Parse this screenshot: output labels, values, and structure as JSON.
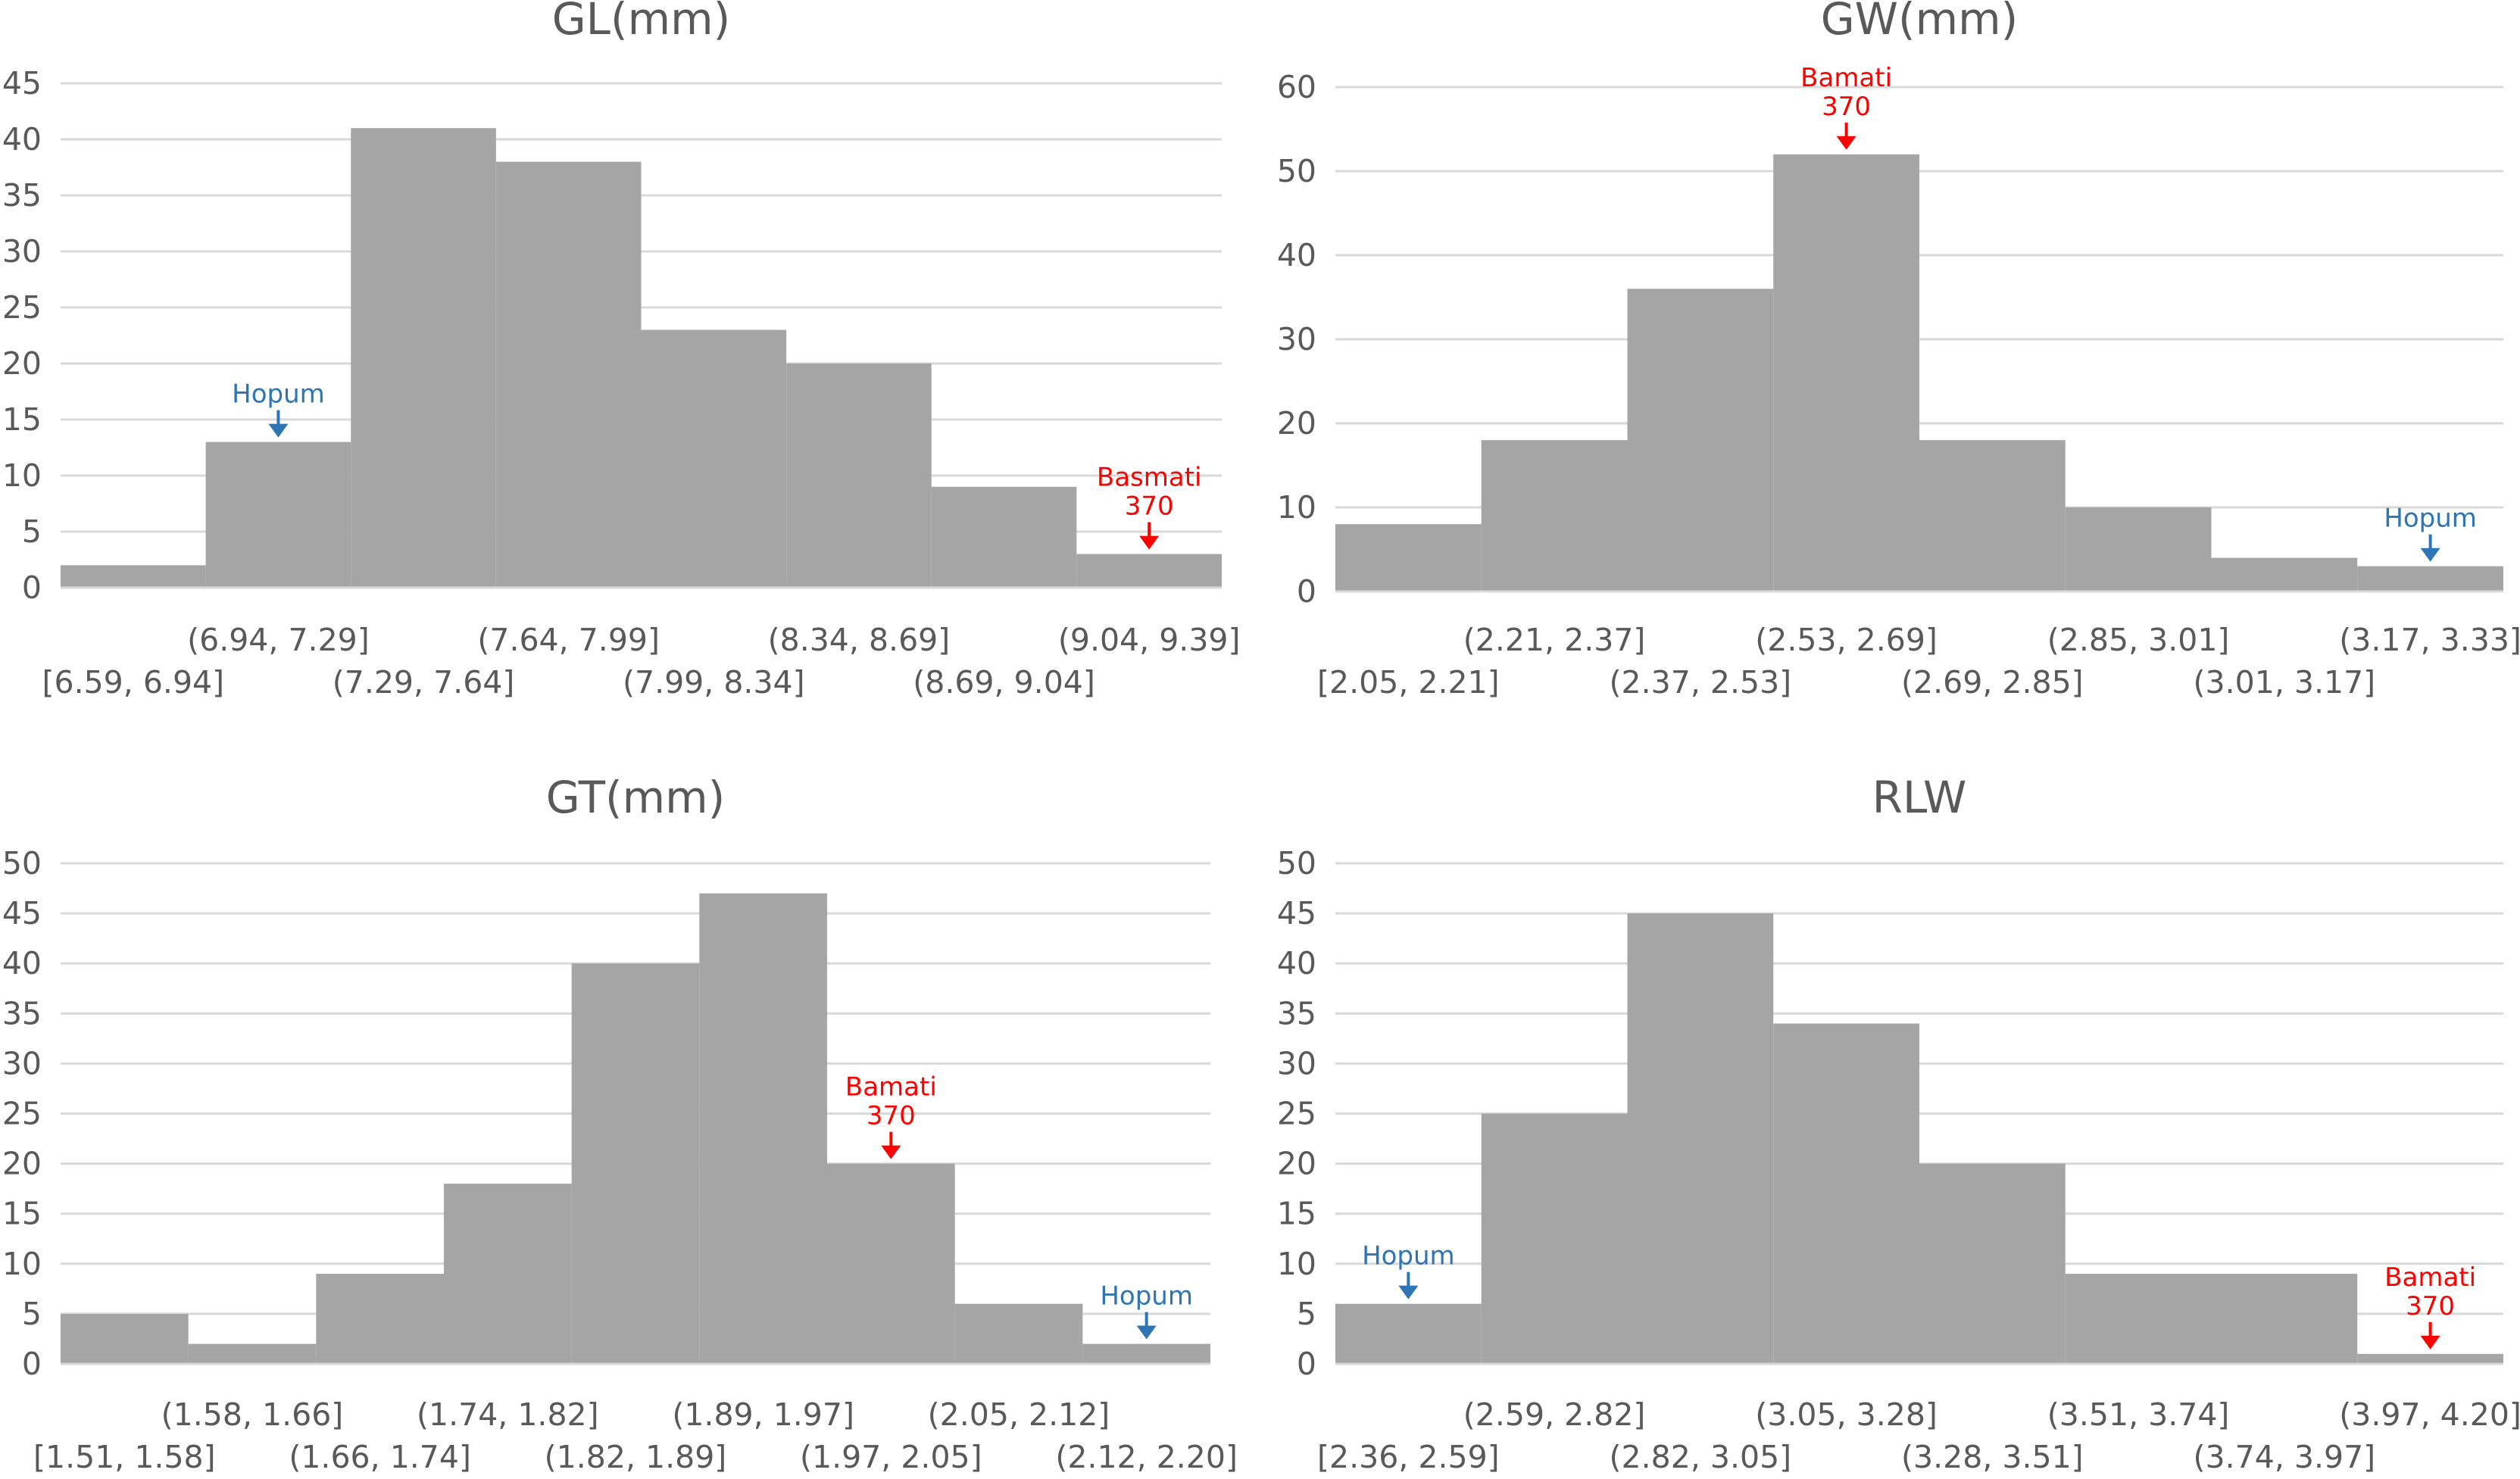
{
  "chart_data": [
    {
      "type": "bar",
      "title": "GL(mm)",
      "categories": [
        "[6.59, 6.94]",
        "(6.94, 7.29]",
        "(7.29, 7.64]",
        "(7.64, 7.99]",
        "(7.99, 8.34]",
        "(8.34, 8.69]",
        "(8.69, 9.04]",
        "(9.04, 9.39]"
      ],
      "values": [
        2,
        13,
        41,
        38,
        23,
        20,
        9,
        3
      ],
      "ylim": [
        0,
        45
      ],
      "yticks": [
        0,
        5,
        10,
        15,
        20,
        25,
        30,
        35,
        40,
        45
      ],
      "annotations": [
        {
          "lines": [
            "Hopum"
          ],
          "category_index": 1,
          "color": "#2e75b6"
        },
        {
          "lines": [
            "Basmati",
            "370"
          ],
          "category_index": 7,
          "color": "#ff0000"
        }
      ]
    },
    {
      "type": "bar",
      "title": "GW(mm)",
      "categories": [
        "[2.05, 2.21]",
        "(2.21, 2.37]",
        "(2.37, 2.53]",
        "(2.53, 2.69]",
        "(2.69, 2.85]",
        "(2.85, 3.01]",
        "(3.01, 3.17]",
        "(3.17, 3.33]"
      ],
      "values": [
        8,
        18,
        36,
        52,
        18,
        10,
        4,
        3
      ],
      "ylim": [
        0,
        60
      ],
      "yticks": [
        0,
        10,
        20,
        30,
        40,
        50,
        60
      ],
      "annotations": [
        {
          "lines": [
            "Bamati",
            "370"
          ],
          "category_index": 3,
          "color": "#ff0000"
        },
        {
          "lines": [
            "Hopum"
          ],
          "category_index": 7,
          "color": "#2e75b6"
        }
      ]
    },
    {
      "type": "bar",
      "title": "GT(mm)",
      "categories": [
        "[1.51, 1.58]",
        "(1.58, 1.66]",
        "(1.66, 1.74]",
        "(1.74, 1.82]",
        "(1.82, 1.89]",
        "(1.89, 1.97]",
        "(1.97, 2.05]",
        "(2.05, 2.12]",
        "(2.12, 2.20]"
      ],
      "values": [
        5,
        2,
        9,
        18,
        40,
        47,
        20,
        6,
        2
      ],
      "ylim": [
        0,
        50
      ],
      "yticks": [
        0,
        5,
        10,
        15,
        20,
        25,
        30,
        35,
        40,
        45,
        50
      ],
      "annotations": [
        {
          "lines": [
            "Bamati",
            "370"
          ],
          "category_index": 6,
          "color": "#ff0000"
        },
        {
          "lines": [
            "Hopum"
          ],
          "category_index": 8,
          "color": "#2e75b6"
        }
      ]
    },
    {
      "type": "bar",
      "title": "RLW",
      "categories": [
        "[2.36, 2.59]",
        "(2.59, 2.82]",
        "(2.82, 3.05]",
        "(3.05, 3.28]",
        "(3.28, 3.51]",
        "(3.51, 3.74]",
        "(3.74, 3.97]",
        "(3.97, 4.20]"
      ],
      "values": [
        6,
        25,
        45,
        34,
        20,
        9,
        9,
        1
      ],
      "ylim": [
        0,
        50
      ],
      "yticks": [
        0,
        5,
        10,
        15,
        20,
        25,
        30,
        35,
        40,
        45,
        50
      ],
      "annotations": [
        {
          "lines": [
            "Hopum"
          ],
          "category_index": 0,
          "color": "#2e75b6"
        },
        {
          "lines": [
            "Bamati",
            "370"
          ],
          "category_index": 7,
          "color": "#ff0000"
        }
      ]
    }
  ]
}
